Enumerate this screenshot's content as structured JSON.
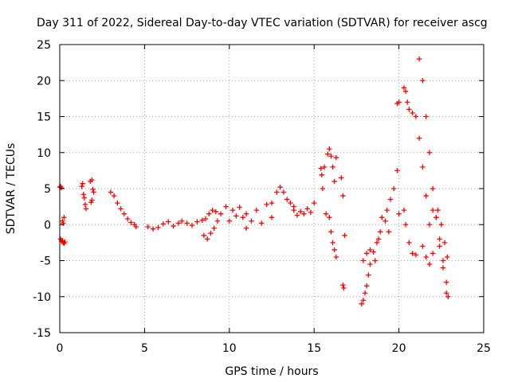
{
  "chart_data": {
    "type": "scatter",
    "title": "Day 311 of 2022, Sidereal Day-to-day VTEC variation (SDTVAR) for receiver ascg",
    "xlabel": "GPS time / hours",
    "ylabel": "SDTVAR / TECUs",
    "xlim": [
      0,
      25
    ],
    "ylim": [
      -15,
      25
    ],
    "xticks": [
      0,
      5,
      10,
      15,
      20,
      25
    ],
    "yticks": [
      -15,
      -10,
      -5,
      0,
      5,
      10,
      15,
      20,
      25
    ],
    "grid": true,
    "marker": "plus",
    "color": "#ff0000",
    "segments": [
      {
        "x": [
          0.0,
          0.05,
          0.1,
          0.15,
          0.2,
          0.25
        ],
        "y": [
          5.2,
          5.3,
          5.1,
          0.5,
          0.2,
          1.0
        ]
      },
      {
        "x": [
          0.05,
          0.1,
          0.15,
          0.2,
          0.25,
          0.3
        ],
        "y": [
          -2.0,
          -2.3,
          -2.2,
          -2.5,
          -2.6,
          -2.4
        ]
      },
      {
        "x": [
          1.3,
          1.35,
          1.4,
          1.45,
          1.5,
          1.55
        ],
        "y": [
          5.3,
          5.7,
          4.2,
          3.7,
          2.8,
          2.2
        ]
      },
      {
        "x": [
          1.8,
          1.9,
          1.95,
          2.0,
          1.85,
          1.9
        ],
        "y": [
          6.0,
          6.2,
          4.9,
          4.5,
          3.1,
          3.4
        ]
      },
      {
        "x": [
          3.0,
          3.2,
          3.4,
          3.6,
          3.8,
          4.0,
          4.2,
          4.4,
          4.5
        ],
        "y": [
          4.5,
          4.0,
          3.0,
          2.2,
          1.5,
          0.8,
          0.3,
          0.0,
          -0.3
        ]
      },
      {
        "x": [
          5.2,
          5.5,
          5.8,
          6.1,
          6.4,
          6.7,
          7.0
        ],
        "y": [
          -0.3,
          -0.6,
          -0.4,
          0.1,
          0.4,
          -0.2,
          0.2
        ]
      },
      {
        "x": [
          7.2,
          7.5,
          7.8,
          8.1,
          8.4
        ],
        "y": [
          0.5,
          0.2,
          -0.1,
          0.4,
          0.6
        ]
      },
      {
        "x": [
          8.5,
          8.7,
          8.9,
          9.1,
          9.3,
          9.5
        ],
        "y": [
          -1.5,
          -2.0,
          -1.2,
          -0.5,
          0.5,
          1.5
        ]
      },
      {
        "x": [
          8.6,
          8.8,
          9.0,
          9.2
        ],
        "y": [
          0.8,
          1.5,
          2.0,
          1.8
        ]
      },
      {
        "x": [
          9.8,
          10.0,
          10.2,
          10.4,
          10.6,
          10.8,
          11.0
        ],
        "y": [
          2.5,
          0.5,
          2.0,
          1.2,
          2.4,
          1.0,
          -0.5
        ]
      },
      {
        "x": [
          11.0,
          11.3,
          11.6,
          11.9,
          12.2,
          12.5
        ],
        "y": [
          1.5,
          0.5,
          2.0,
          0.2,
          2.8,
          1.0
        ]
      },
      {
        "x": [
          12.5,
          12.8,
          13.0,
          13.2,
          13.4,
          13.6,
          13.8
        ],
        "y": [
          3.0,
          4.5,
          5.2,
          4.5,
          3.5,
          3.0,
          2.5
        ]
      },
      {
        "x": [
          13.8,
          14.0,
          14.2,
          14.4,
          14.6,
          14.8,
          15.0
        ],
        "y": [
          2.0,
          1.3,
          1.8,
          1.5,
          2.2,
          1.7,
          3.0
        ]
      },
      {
        "x": [
          15.4,
          15.45,
          15.5,
          15.6,
          15.7
        ],
        "y": [
          7.8,
          6.9,
          5.0,
          8.0,
          1.5
        ]
      },
      {
        "x": [
          15.8,
          15.9,
          16.0,
          16.1,
          16.2,
          16.3
        ],
        "y": [
          9.8,
          10.5,
          9.5,
          8.0,
          6.0,
          9.3
        ]
      },
      {
        "x": [
          15.9,
          16.0,
          16.1,
          16.2,
          16.3
        ],
        "y": [
          1.0,
          -1.0,
          -2.5,
          -3.5,
          -4.5
        ]
      },
      {
        "x": [
          16.6,
          16.7,
          16.8
        ],
        "y": [
          6.5,
          4.0,
          -1.5
        ]
      },
      {
        "x": [
          16.7,
          16.75
        ],
        "y": [
          -8.4,
          -8.8
        ]
      },
      {
        "x": [
          17.8,
          17.9,
          18.0,
          18.1,
          18.2,
          18.3
        ],
        "y": [
          -11.0,
          -10.5,
          -9.5,
          -8.5,
          -7.0,
          -5.5
        ]
      },
      {
        "x": [
          17.9,
          18.1,
          18.3,
          18.5,
          18.7,
          18.9
        ],
        "y": [
          -5.0,
          -4.0,
          -3.5,
          -3.8,
          -2.5,
          -1.0
        ]
      },
      {
        "x": [
          18.6,
          18.8,
          19.0,
          19.2,
          19.4
        ],
        "y": [
          -5.0,
          -2.0,
          1.0,
          0.5,
          -1.0
        ]
      },
      {
        "x": [
          19.3,
          19.5,
          19.7,
          19.9,
          20.0
        ],
        "y": [
          2.0,
          3.5,
          5.0,
          7.5,
          1.5
        ]
      },
      {
        "x": [
          19.9,
          20.0
        ],
        "y": [
          16.8,
          17.0
        ]
      },
      {
        "x": [
          20.3,
          20.4,
          20.5,
          20.6,
          20.8,
          21.0
        ],
        "y": [
          19.0,
          18.5,
          17.0,
          16.0,
          15.5,
          15.0
        ]
      },
      {
        "x": [
          20.3,
          20.4,
          20.6,
          20.8,
          21.0
        ],
        "y": [
          2.0,
          0.0,
          -2.5,
          -4.0,
          -4.2
        ]
      },
      {
        "x": [
          21.2,
          21.4,
          21.6,
          21.8,
          22.0,
          22.2,
          22.4,
          22.6,
          22.8
        ],
        "y": [
          23.0,
          20.0,
          15.0,
          10.0,
          5.0,
          1.0,
          -3.0,
          -6.0,
          -9.5
        ]
      },
      {
        "x": [
          21.2,
          21.4,
          21.6,
          21.8,
          22.0
        ],
        "y": [
          12.0,
          8.0,
          4.0,
          0.0,
          -4.0
        ]
      },
      {
        "x": [
          21.4,
          21.6,
          21.8
        ],
        "y": [
          -3.0,
          -4.5,
          -5.5
        ]
      },
      {
        "x": [
          22.0,
          22.2,
          22.4,
          22.6,
          22.8,
          22.9
        ],
        "y": [
          2.0,
          1.0,
          -2.0,
          -5.0,
          -8.0,
          -10.0
        ]
      },
      {
        "x": [
          22.3,
          22.5,
          22.7,
          22.85
        ],
        "y": [
          2.0,
          0.0,
          -2.5,
          -4.5
        ]
      }
    ]
  }
}
